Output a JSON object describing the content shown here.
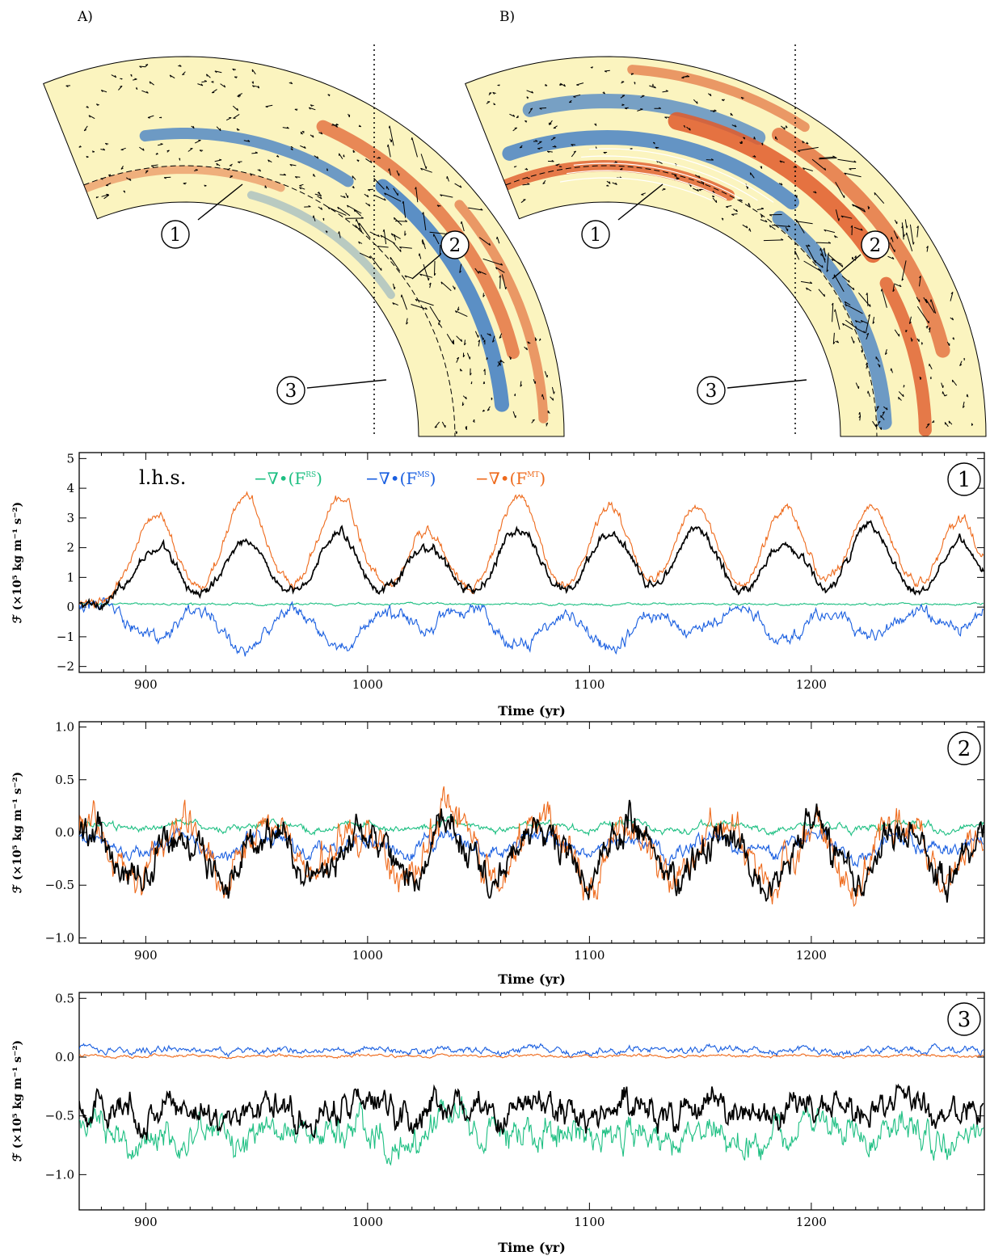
{
  "figure": {
    "panel_a_label": "A)",
    "panel_b_label": "B)"
  },
  "wedges": [
    {
      "label": "A)",
      "markers": [
        "1",
        "2",
        "3"
      ]
    },
    {
      "label": "B)",
      "markers": [
        "1",
        "2",
        "3"
      ]
    }
  ],
  "colors": {
    "lhs": "#000000",
    "rs": "#1dbf82",
    "ms": "#1a5fe0",
    "mt": "#ee6a1c",
    "wedge_bg": "#fbf4bf",
    "wedge_red": "#e05a2a",
    "wedge_blue": "#3e7cc6"
  },
  "chart_data": [
    {
      "type": "line",
      "panel_marker": "1",
      "xlabel": "Time (yr)",
      "ylabel": "ℱ (×10⁵ kg m⁻¹ s⁻²)",
      "xlim": [
        870,
        1278
      ],
      "ylim": [
        -2.2,
        5.2
      ],
      "xticks": [
        900,
        1000,
        1100,
        1200
      ],
      "yticks": [
        -2,
        -1,
        0,
        1,
        2,
        3,
        4,
        5
      ],
      "legend": [
        "l.h.s.",
        "−∇•(F^RS)",
        "−∇•(F^MS)",
        "−∇•(F^MT)"
      ],
      "legend_position": "top-left",
      "cycle_peaks_x": [
        904,
        945,
        987,
        1027,
        1068,
        1109,
        1148,
        1188,
        1227,
        1267
      ],
      "series": [
        {
          "name": "l.h.s.",
          "color": "#000000",
          "baseline": 0.05,
          "peaks": [
            1.9,
            2.2,
            2.4,
            1.9,
            2.5,
            2.4,
            2.6,
            2.1,
            2.6,
            2.1
          ],
          "noise": 0.14
        },
        {
          "name": "−∇•(F^RS)",
          "color": "#1dbf82",
          "baseline": 0.1,
          "peaks": [
            0,
            0,
            0,
            0,
            0,
            0,
            0,
            0,
            0,
            0
          ],
          "noise": 0.03
        },
        {
          "name": "−∇•(F^MS)",
          "color": "#1a5fe0",
          "baseline": 0.05,
          "peaks": [
            -1.1,
            -1.5,
            -1.4,
            -0.8,
            -1.4,
            -1.4,
            -1.0,
            -1.2,
            -1.1,
            -0.8
          ],
          "noise": 0.2
        },
        {
          "name": "−∇•(F^MT)",
          "color": "#ee6a1c",
          "baseline": 0.05,
          "peaks": [
            3.0,
            3.6,
            3.6,
            2.4,
            3.7,
            3.3,
            3.4,
            3.2,
            3.4,
            2.7
          ],
          "noise": 0.14
        }
      ]
    },
    {
      "type": "line",
      "panel_marker": "2",
      "xlabel": "Time (yr)",
      "ylabel": "ℱ (×10⁵ kg m⁻¹ s⁻²)",
      "xlim": [
        870,
        1278
      ],
      "ylim": [
        -1.05,
        1.05
      ],
      "xticks": [
        900,
        1000,
        1100,
        1200
      ],
      "yticks": [
        -1.0,
        -0.5,
        0.0,
        0.5,
        1.0
      ],
      "series": [
        {
          "name": "l.h.s.",
          "color": "#000000",
          "baseline": -0.2,
          "amplitude": 0.25,
          "noise": 0.14
        },
        {
          "name": "−∇•(F^RS)",
          "color": "#1dbf82",
          "baseline": 0.06,
          "amplitude": 0.03,
          "noise": 0.03
        },
        {
          "name": "−∇•(F^MS)",
          "color": "#1a5fe0",
          "baseline": -0.12,
          "amplitude": 0.08,
          "noise": 0.06
        },
        {
          "name": "−∇•(F^MT)",
          "color": "#ee6a1c",
          "baseline": -0.15,
          "amplitude": 0.25,
          "noise": 0.15
        }
      ]
    },
    {
      "type": "line",
      "panel_marker": "3",
      "xlabel": "Time (yr)",
      "ylabel": "ℱ (×10⁵ kg m⁻¹ s⁻²)",
      "xlim": [
        870,
        1278
      ],
      "ylim": [
        -1.3,
        0.55
      ],
      "xticks": [
        900,
        1000,
        1100,
        1200
      ],
      "yticks": [
        -1.0,
        -0.5,
        0.0,
        0.5
      ],
      "series": [
        {
          "name": "l.h.s.",
          "color": "#000000",
          "baseline": -0.45,
          "amplitude": 0.05,
          "noise": 0.11
        },
        {
          "name": "−∇•(F^RS)",
          "color": "#1dbf82",
          "baseline": -0.65,
          "amplitude": 0.05,
          "noise": 0.12
        },
        {
          "name": "−∇•(F^MS)",
          "color": "#1a5fe0",
          "baseline": 0.06,
          "amplitude": 0.01,
          "noise": 0.025
        },
        {
          "name": "−∇•(F^MT)",
          "color": "#ee6a1c",
          "baseline": 0.01,
          "amplitude": 0.005,
          "noise": 0.01
        }
      ]
    }
  ]
}
